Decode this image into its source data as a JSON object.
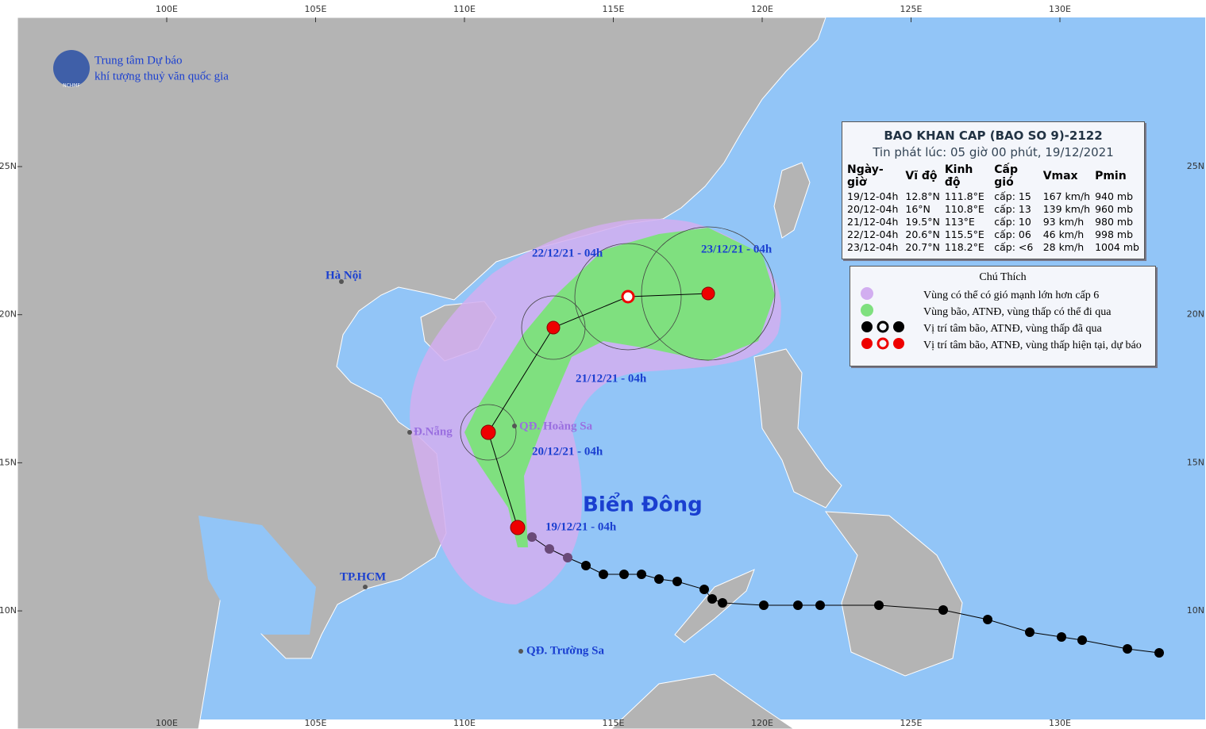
{
  "header": {
    "org_line1": "Trung tâm Dự báo",
    "org_line2": "khí tượng thuỷ văn quốc gia",
    "logo_text": "NCHMF"
  },
  "axes": {
    "lon": [
      "100E",
      "105E",
      "110E",
      "115E",
      "120E",
      "125E",
      "130E"
    ],
    "lat": [
      "25N",
      "20N",
      "15N",
      "10N"
    ]
  },
  "bulletin": {
    "title": "BAO KHAN CAP (BAO SO 9)-2122",
    "issued": "Tin phát lúc: 05 giờ 00 phút, 19/12/2021",
    "columns": [
      "Ngày-giờ",
      "Vĩ độ",
      "Kinh độ",
      "Cấp gió",
      "Vmax",
      "Pmin"
    ],
    "rows": [
      [
        "19/12-04h",
        "12.8°N",
        "111.8°E",
        "cấp: 15",
        "167 km/h",
        "940 mb"
      ],
      [
        "20/12-04h",
        "16°N",
        "110.8°E",
        "cấp: 13",
        "139 km/h",
        "960 mb"
      ],
      [
        "21/12-04h",
        "19.5°N",
        "113°E",
        "cấp: 10",
        "93 km/h",
        "980 mb"
      ],
      [
        "22/12-04h",
        "20.6°N",
        "115.5°E",
        "cấp: 06",
        "46 km/h",
        "998 mb"
      ],
      [
        "23/12-04h",
        "20.7°N",
        "118.2°E",
        "cấp: <6",
        "28 km/h",
        "1004 mb"
      ]
    ]
  },
  "legend": {
    "title": "Chú Thích",
    "items": [
      "Vùng có thể có gió mạnh lớn hơn cấp 6",
      "Vùng bão, ATNĐ, vùng thấp có thể đi qua",
      "Vị trí tâm bão, ATNĐ, vùng thấp đã qua",
      "Vị trí tâm bão, ATNĐ, vùng thấp hiện tại, dự báo"
    ]
  },
  "map_labels": {
    "hanoi": "Hà Nội",
    "danang": "Đ.Nẵng",
    "hoangsa": "QĐ. Hoàng Sa",
    "hcm": "TP.HCM",
    "truongsa": "QĐ. Trường Sa",
    "sea": "Biển Đông",
    "t22": "22/12/21 - 04h",
    "t23": "23/12/21 - 04h",
    "t21": "21/12/21 - 04h",
    "t20": "20/12/21 - 04h",
    "t19": "19/12/21 - 04h"
  }
}
